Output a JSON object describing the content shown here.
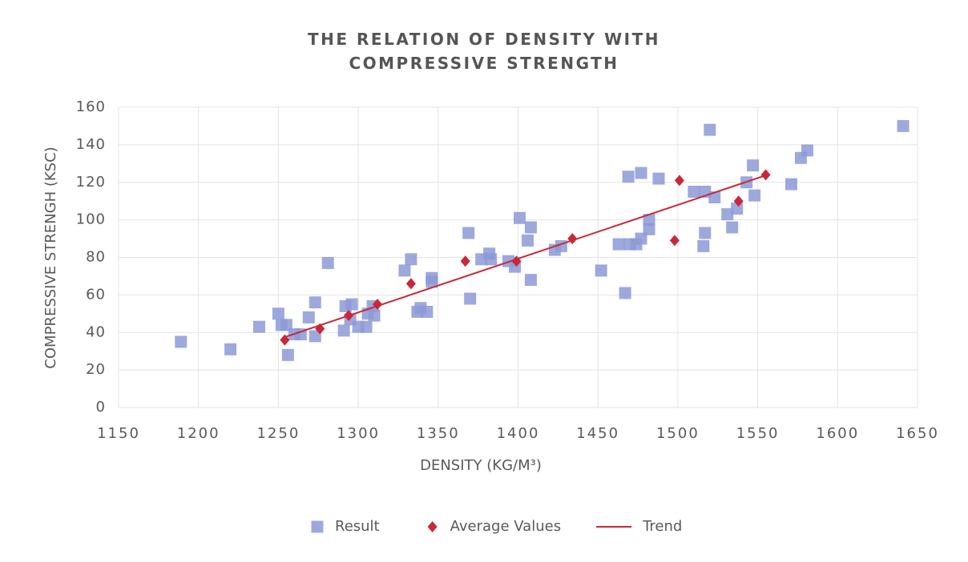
{
  "chart_data": {
    "type": "scatter",
    "title": "THE RELATION OF DENSITY WITH COMPRESSIVE STRENGTH",
    "x_label": "DENSITY (KG/M³)",
    "y_label": "COMPRESSIVE STRENGH (KSC)",
    "xlim": [
      1150,
      1650
    ],
    "xticks": [
      1150,
      1200,
      1250,
      1300,
      1350,
      1400,
      1450,
      1500,
      1550,
      1600,
      1650
    ],
    "ylim": [
      0,
      160
    ],
    "yticks": [
      0,
      20,
      40,
      60,
      80,
      100,
      120,
      140,
      160
    ],
    "grid": true,
    "legend": "bottom",
    "series": [
      {
        "name": "Result",
        "color": "#8c9ad6",
        "marker": "square",
        "x": [
          1189,
          1220,
          1238,
          1250,
          1252,
          1255,
          1256,
          1260,
          1264,
          1269,
          1273,
          1273,
          1281,
          1291,
          1292,
          1296,
          1295,
          1300,
          1305,
          1306,
          1309,
          1310,
          1329,
          1333,
          1337,
          1339,
          1343,
          1346,
          1346,
          1369,
          1370,
          1377,
          1382,
          1383,
          1394,
          1398,
          1401,
          1406,
          1408,
          1408,
          1423,
          1427,
          1452,
          1463,
          1467,
          1469,
          1470,
          1474,
          1477,
          1477,
          1482,
          1482,
          1488,
          1510,
          1517,
          1517,
          1516,
          1520,
          1523,
          1531,
          1534,
          1537,
          1543,
          1547,
          1548,
          1571,
          1577,
          1581,
          1641
        ],
        "values": [
          35,
          31,
          43,
          50,
          44,
          44,
          28,
          39,
          39,
          48,
          56,
          38,
          77,
          41,
          54,
          55,
          47,
          43,
          43,
          50,
          54,
          49,
          73,
          79,
          51,
          53,
          51,
          69,
          67,
          93,
          58,
          79,
          82,
          79,
          78,
          75,
          101,
          89,
          96,
          68,
          84,
          86,
          73,
          87,
          61,
          123,
          87,
          87,
          125,
          90,
          95,
          100,
          122,
          115,
          115,
          93,
          86,
          148,
          112,
          103,
          96,
          106,
          120,
          129,
          113,
          119,
          133,
          137,
          150
        ]
      },
      {
        "name": "Average Values",
        "color": "#c8283a",
        "marker": "diamond",
        "x": [
          1254,
          1276,
          1294,
          1312,
          1333,
          1367,
          1399,
          1434,
          1498,
          1501,
          1538,
          1555
        ],
        "values": [
          36,
          42,
          49,
          55,
          66,
          78,
          78,
          90,
          89,
          121,
          110,
          124
        ]
      },
      {
        "name": "Trend",
        "color": "#c8283a",
        "marker": "line",
        "x": [
          1254,
          1556
        ],
        "values": [
          37.5,
          124
        ]
      }
    ]
  }
}
